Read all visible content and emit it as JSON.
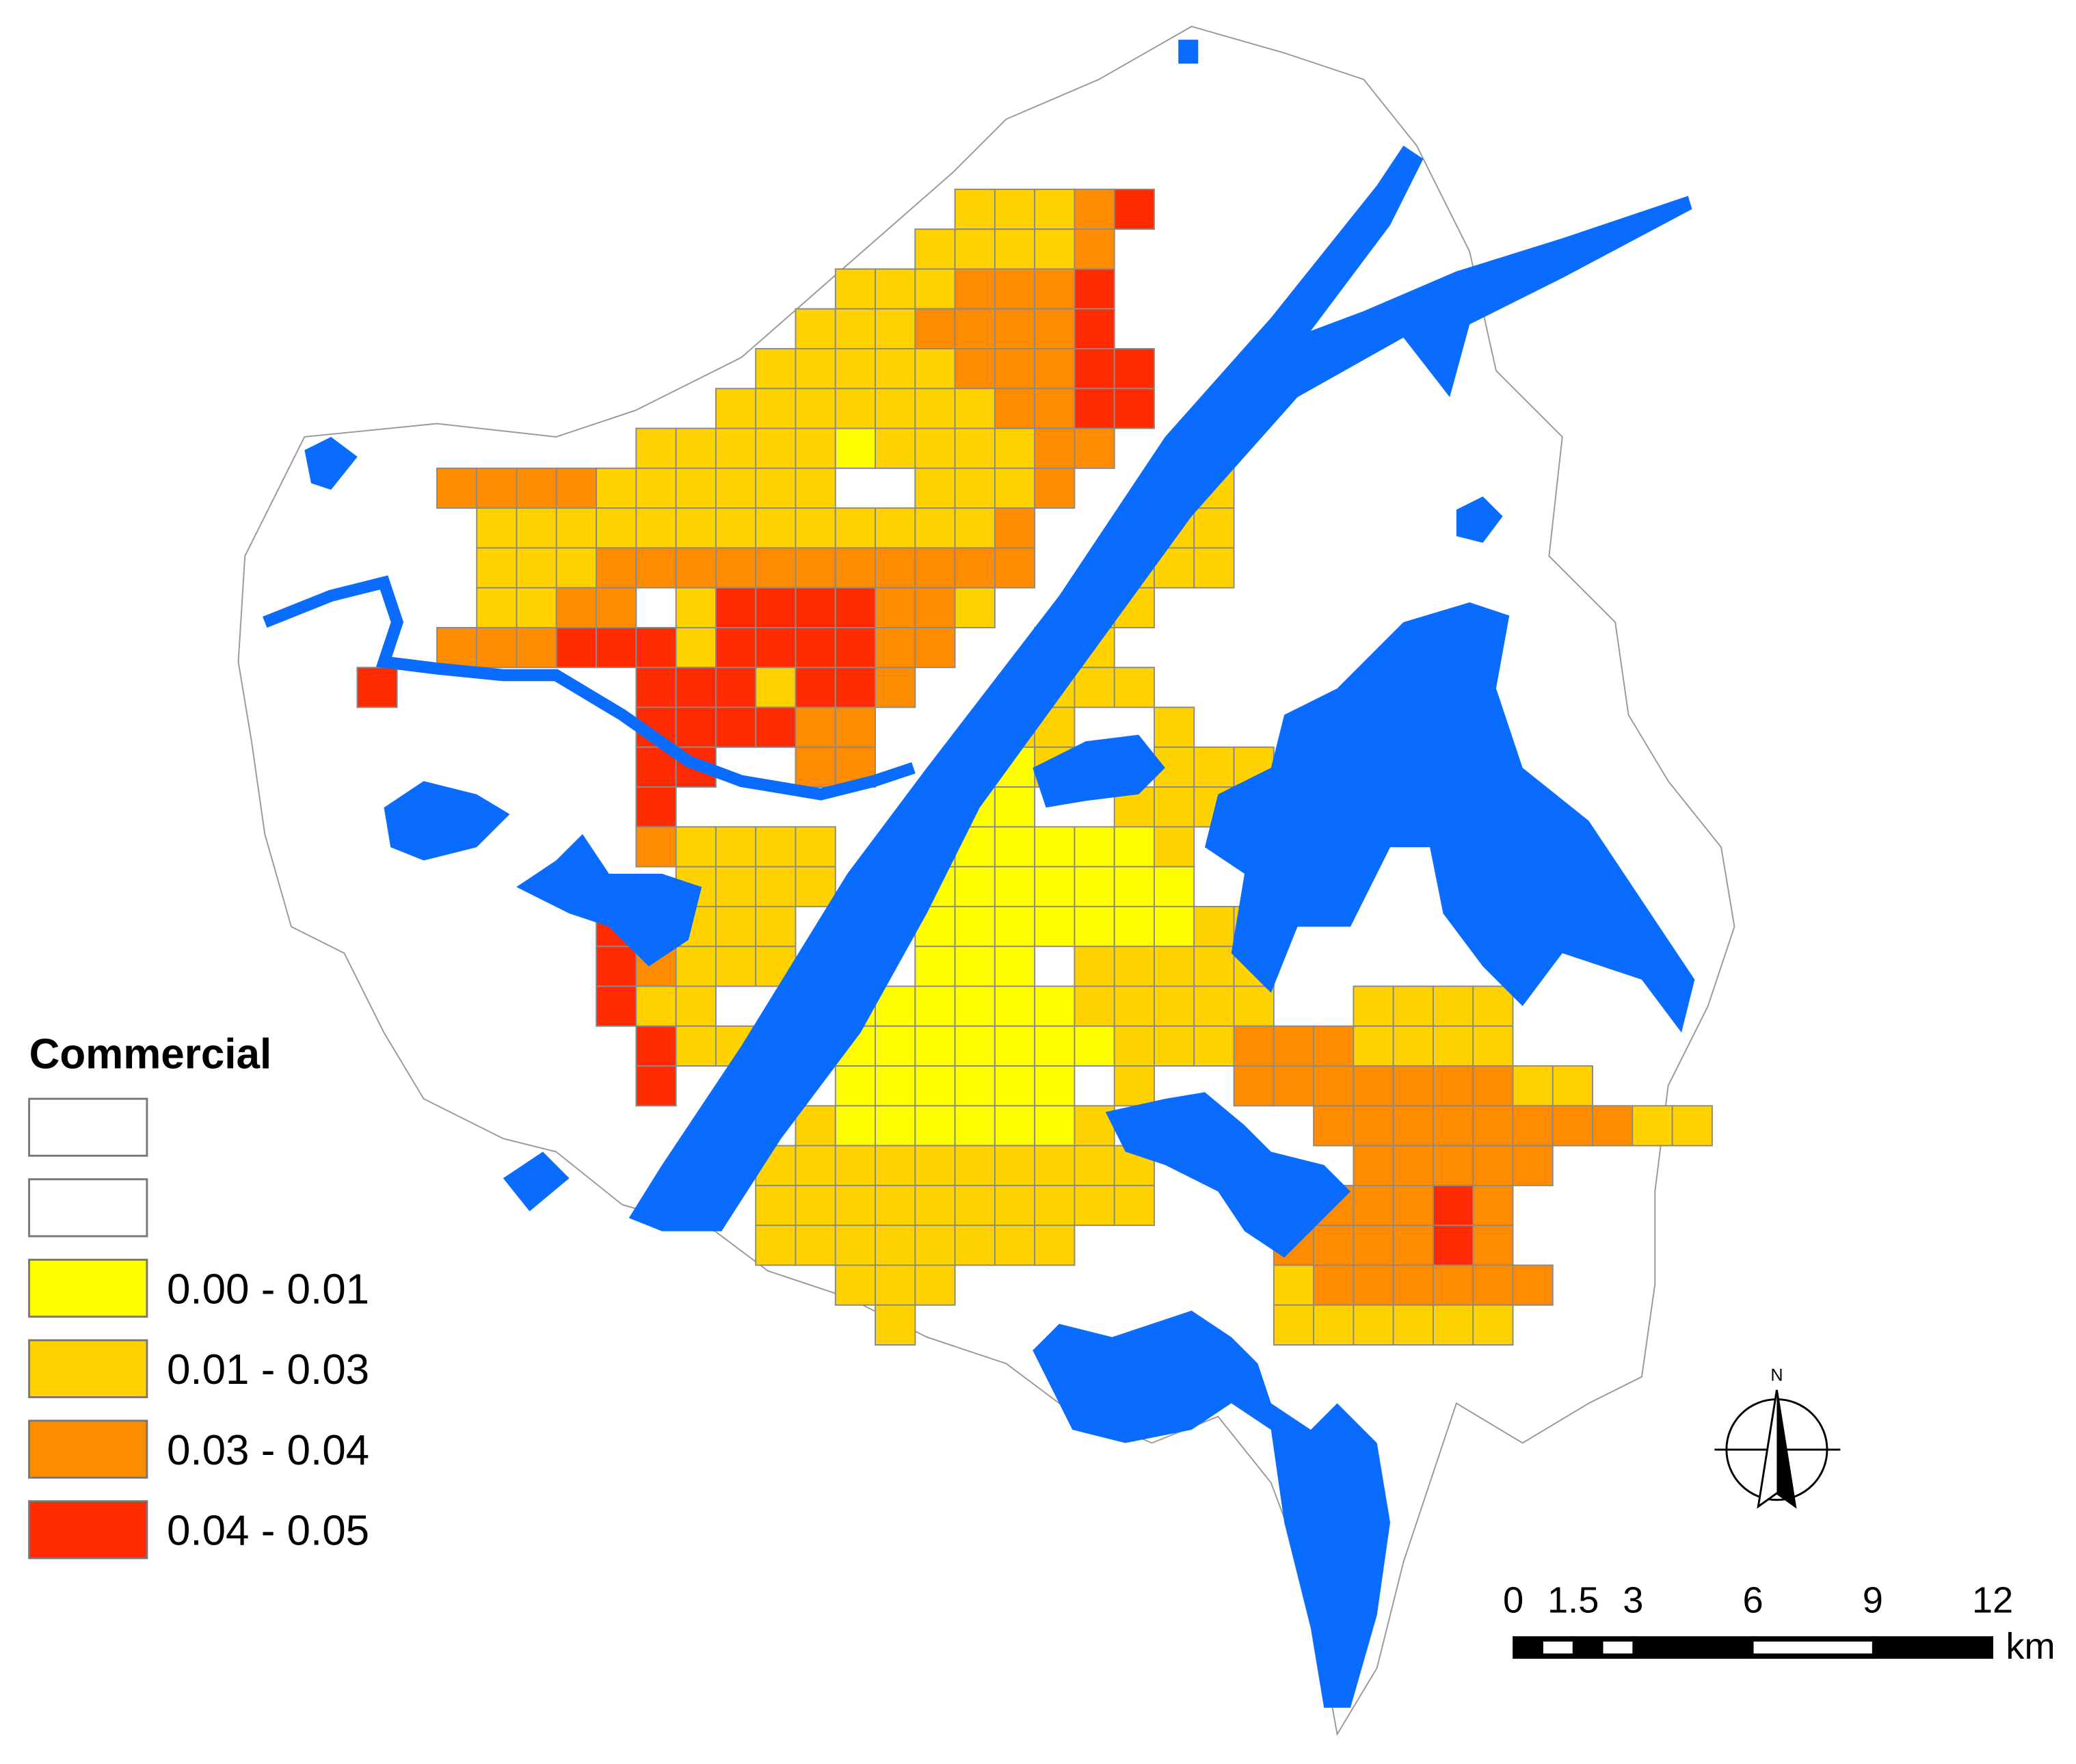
{
  "legend": {
    "title": "Commercial",
    "classes": [
      {
        "color": "#ffffff"
      },
      {
        "color": "#ffffff"
      },
      {
        "label": "0.00 - 0.01",
        "color": "#ffff00"
      },
      {
        "label": "0.01 - 0.03",
        "color": "#ffd200"
      },
      {
        "label": "0.03 - 0.04",
        "color": "#ff8c00"
      },
      {
        "label": "0.04 - 0.05",
        "color": "#ff2a00"
      }
    ]
  },
  "scale": {
    "ticks": [
      0,
      1.5,
      3,
      6,
      9,
      12
    ],
    "unit": "km"
  },
  "north": "N"
}
